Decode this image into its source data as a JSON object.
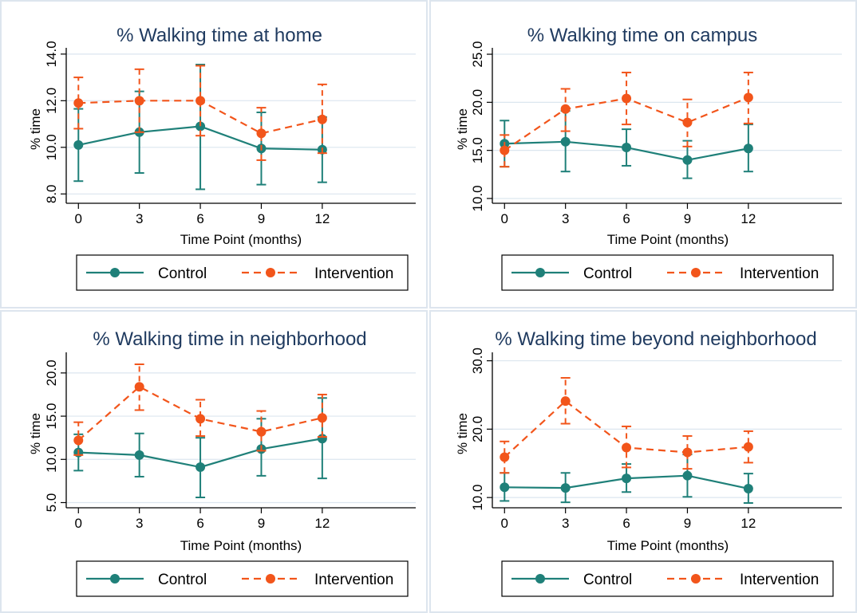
{
  "colors": {
    "control": "#1f8079",
    "intervention": "#f2551b",
    "title": "#1f3a5f",
    "panel_border": "#dde5ee",
    "grid": "#dce6ef"
  },
  "chart_data": [
    {
      "type": "line",
      "title": "% Walking time at home",
      "xlabel": "Time Point (months)",
      "ylabel": "% time",
      "x": [
        0,
        3,
        6,
        9,
        12
      ],
      "xticks": [
        "0",
        "3",
        "6",
        "9",
        "12"
      ],
      "xlim": [
        -0.6,
        16.6
      ],
      "ylim": [
        7.6,
        14.2
      ],
      "yticks": [
        "8.0",
        "10.0",
        "12.0",
        "14.0"
      ],
      "ytick_values": [
        8,
        10,
        12,
        14
      ],
      "grid": true,
      "legend_position": "bottom",
      "series": [
        {
          "name": "Control",
          "values": [
            10.1,
            10.65,
            10.9,
            9.95,
            9.9
          ],
          "lower": [
            8.55,
            8.9,
            8.2,
            8.4,
            8.5
          ],
          "upper": [
            11.65,
            12.4,
            13.55,
            11.5,
            11.3
          ]
        },
        {
          "name": "Intervention",
          "values": [
            11.9,
            12.0,
            12.0,
            10.6,
            11.2
          ],
          "lower": [
            10.8,
            10.65,
            10.5,
            9.45,
            9.75
          ],
          "upper": [
            13.0,
            13.35,
            13.5,
            11.7,
            12.7
          ]
        }
      ]
    },
    {
      "type": "line",
      "title": "% Walking time on campus",
      "xlabel": "Time Point (months)",
      "ylabel": "% time",
      "x": [
        0,
        3,
        6,
        9,
        12
      ],
      "xticks": [
        "0",
        "3",
        "6",
        "9",
        "12"
      ],
      "xlim": [
        -0.6,
        16.6
      ],
      "ylim": [
        9.5,
        25.5
      ],
      "yticks": [
        "10.0",
        "15.0",
        "20.0",
        "25.0"
      ],
      "ytick_values": [
        10,
        15,
        20,
        25
      ],
      "grid": true,
      "legend_position": "bottom",
      "series": [
        {
          "name": "Control",
          "values": [
            15.7,
            15.9,
            15.3,
            14.0,
            15.2
          ],
          "lower": [
            13.3,
            12.8,
            13.4,
            12.1,
            12.8
          ],
          "upper": [
            18.1,
            19.1,
            17.2,
            16.0,
            17.7
          ]
        },
        {
          "name": "Intervention",
          "values": [
            15.0,
            19.3,
            20.4,
            17.9,
            20.5
          ],
          "lower": [
            13.3,
            17.0,
            17.7,
            15.4,
            17.8
          ],
          "upper": [
            16.6,
            21.4,
            23.1,
            20.3,
            23.1
          ]
        }
      ]
    },
    {
      "type": "line",
      "title": "% Walking time in neighborhood",
      "xlabel": "Time Point (months)",
      "ylabel": "% time",
      "x": [
        0,
        3,
        6,
        9,
        12
      ],
      "xticks": [
        "0",
        "3",
        "6",
        "9",
        "12"
      ],
      "xlim": [
        -0.6,
        16.6
      ],
      "ylim": [
        4.4,
        22.2
      ],
      "yticks": [
        "5.0",
        "10.0",
        "15.0",
        "20.0"
      ],
      "ytick_values": [
        5,
        10,
        15,
        20
      ],
      "grid": true,
      "legend_position": "bottom",
      "series": [
        {
          "name": "Control",
          "values": [
            10.8,
            10.5,
            9.1,
            11.2,
            12.4
          ],
          "lower": [
            8.7,
            8.0,
            5.6,
            8.1,
            7.8
          ],
          "upper": [
            12.9,
            13.0,
            12.5,
            14.7,
            17.1
          ]
        },
        {
          "name": "Intervention",
          "values": [
            12.2,
            18.4,
            14.7,
            13.2,
            14.8
          ],
          "lower": [
            10.5,
            15.7,
            12.7,
            11.0,
            12.6
          ],
          "upper": [
            14.3,
            21.0,
            16.9,
            15.6,
            17.5
          ]
        }
      ]
    },
    {
      "type": "line",
      "title": "% Walking time beyond neighborhood",
      "xlabel": "Time Point (months)",
      "ylabel": "% time",
      "x": [
        0,
        3,
        6,
        9,
        12
      ],
      "xticks": [
        "0",
        "3",
        "6",
        "9",
        "12"
      ],
      "xlim": [
        -0.6,
        16.6
      ],
      "ylim": [
        8.5,
        31.0
      ],
      "yticks": [
        "10.0",
        "20.0",
        "30.0"
      ],
      "ytick_values": [
        10,
        20,
        30
      ],
      "grid": true,
      "legend_position": "bottom",
      "series": [
        {
          "name": "Control",
          "values": [
            11.5,
            11.4,
            12.8,
            13.2,
            11.3
          ],
          "lower": [
            9.5,
            9.3,
            10.8,
            10.1,
            9.2
          ],
          "upper": [
            13.6,
            13.6,
            14.9,
            16.3,
            13.5
          ]
        },
        {
          "name": "Intervention",
          "values": [
            15.9,
            24.1,
            17.3,
            16.6,
            17.4
          ],
          "lower": [
            13.6,
            20.8,
            14.4,
            14.2,
            15.1
          ],
          "upper": [
            18.2,
            27.5,
            20.4,
            19.0,
            19.7
          ]
        }
      ]
    }
  ]
}
